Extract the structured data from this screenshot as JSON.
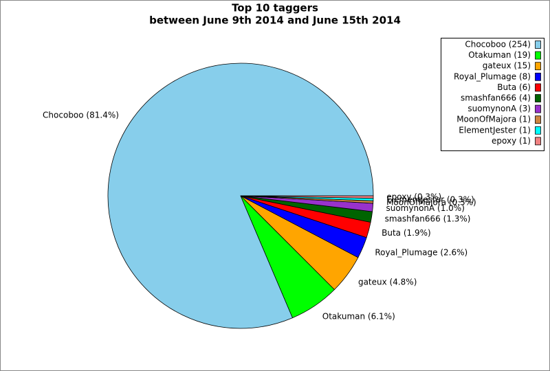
{
  "chart_data": {
    "type": "pie",
    "title": "Top 10 taggers",
    "subtitle": "between June 9th 2014 and June 15th 2014",
    "categories": [
      "Chocoboo (254)",
      "Otakuman (19)",
      "gateux (15)",
      "Royal_Plumage (8)",
      "Buta (6)",
      "smashfan666 (4)",
      "suomynonA (3)",
      "MoonOfMajora (1)",
      "ElementJester (1)",
      "epoxy (1)"
    ],
    "values": [
      81.4,
      6.1,
      4.8,
      2.6,
      1.9,
      1.3,
      1.0,
      0.3,
      0.3,
      0.3
    ],
    "value_labels": [
      "Chocoboo (81.4%)",
      "Otakuman (6.1%)",
      "gateux (4.8%)",
      "Royal_Plumage (2.6%)",
      "Buta (1.9%)",
      "smashfan666 (1.3%)",
      "suomynonA (1.0%)",
      "MoonOfMajora (0.3%)",
      "ElementJester (0.3%)",
      "epoxy (0.3%)"
    ],
    "colors": [
      "#87ceeb",
      "#00ff00",
      "#ffa500",
      "#0000ff",
      "#ff0000",
      "#006400",
      "#9932cc",
      "#cd853f",
      "#00ffff",
      "#f08080"
    ],
    "legend": "upper right"
  }
}
